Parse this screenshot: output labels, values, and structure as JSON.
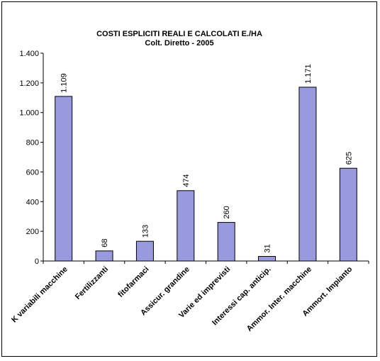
{
  "chart_data": {
    "type": "bar",
    "title": "COSTI ESPLICITI REALI E CALCOLATI E./HA",
    "subtitle": "Colt.  Diretto - 2005",
    "categories": [
      "K variabili macchine",
      "Fertilizzanti",
      "fitofarmaci",
      "Assicur. grandine",
      "Varie ed imprevisti",
      "Interessi cap. anticip.",
      "Ammor. Inter. macchine",
      "Ammort. Impianto"
    ],
    "values": [
      1109,
      68,
      133,
      474,
      260,
      31,
      1171,
      625
    ],
    "value_labels": [
      "1.109",
      "68",
      "133",
      "474",
      "260",
      "31",
      "1.171",
      "625"
    ],
    "ylim": [
      0,
      1400
    ],
    "y_ticks": [
      0,
      200,
      400,
      600,
      800,
      1000,
      1200,
      1400
    ],
    "y_tick_labels": [
      "0",
      "200",
      "400",
      "600",
      "800",
      "1.000",
      "1.200",
      "1.400"
    ],
    "grid": false,
    "legend": "none",
    "bar_color": "#9999dd"
  }
}
